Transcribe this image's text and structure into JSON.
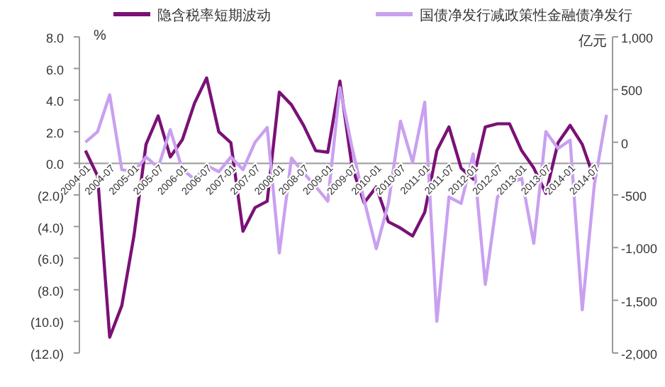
{
  "chart_data": {
    "type": "line",
    "ylabel": "%",
    "y2label": "亿元",
    "legend": "top",
    "line_style": "solid",
    "marker": "none",
    "categories": [
      "2004-01",
      null,
      "2004-07",
      null,
      "2005-01",
      null,
      "2005-07",
      null,
      "2006-01",
      null,
      "2006-07",
      null,
      "2007-01",
      null,
      "2007-07",
      null,
      "2008-01",
      null,
      "2008-07",
      null,
      "2009-01",
      null,
      "2009-07",
      null,
      "2010-01",
      null,
      "2010-07",
      null,
      "2011-01",
      null,
      "2011-07",
      null,
      "2012-01",
      null,
      "2012-07",
      null,
      "2013-01",
      null,
      "2013-07",
      null,
      "2014-01",
      null,
      "2014-07",
      null
    ],
    "ylim": [
      -12,
      8
    ],
    "yticks": [
      {
        "value": 8,
        "label": "8.0"
      },
      {
        "value": 6,
        "label": "6.0"
      },
      {
        "value": 4,
        "label": "4.0"
      },
      {
        "value": 2,
        "label": "2.0"
      },
      {
        "value": 0,
        "label": "0.0"
      },
      {
        "value": -2,
        "label": "(2.0)"
      },
      {
        "value": -4,
        "label": "(4.0)"
      },
      {
        "value": -6,
        "label": "(6.0)"
      },
      {
        "value": -8,
        "label": "(8.0)"
      },
      {
        "value": -10,
        "label": "(10.0)"
      },
      {
        "value": -12,
        "label": "(12.0)"
      }
    ],
    "y2lim": [
      -2000,
      1000
    ],
    "y2ticks": [
      {
        "value": 1000,
        "label": "1,000"
      },
      500,
      0,
      -500,
      {
        "value": -1000,
        "label": "-1,000"
      },
      {
        "value": -1500,
        "label": "-1,500"
      },
      {
        "value": -2000,
        "label": "-2,000"
      }
    ],
    "series": [
      {
        "name": "隐含税率短期波动",
        "color": "#7a1176",
        "values": [
          0.8,
          -0.8,
          -11.0,
          -9.0,
          -4.6,
          1.2,
          3.0,
          0.4,
          1.5,
          3.8,
          5.4,
          2.0,
          1.3,
          -4.3,
          -2.8,
          -2.4,
          4.5,
          3.7,
          2.4,
          0.8,
          0.7,
          5.2,
          -0.2,
          -2.5,
          -1.5,
          -3.7,
          -4.1,
          -4.6,
          -3.1,
          0.8,
          2.3,
          -0.3,
          -1.0,
          2.3,
          2.5,
          2.5,
          0.8,
          -0.3,
          -1.9,
          1.3,
          2.4,
          1.2,
          -1.0,
          null
        ]
      },
      {
        "name": "国债净发行减政策性金融债净发行",
        "color": "#c9a0f0",
        "axis": "y2",
        "values": [
          0,
          100,
          450,
          -260,
          -280,
          -140,
          -240,
          120,
          -260,
          -350,
          -220,
          -280,
          -140,
          -260,
          0,
          140,
          -1050,
          -150,
          -290,
          -420,
          -560,
          520,
          -50,
          -550,
          -1010,
          -580,
          200,
          -190,
          380,
          -1700,
          -520,
          -580,
          -110,
          -1350,
          -520,
          -400,
          -340,
          -960,
          100,
          -60,
          20,
          -1590,
          -400,
          260
        ]
      }
    ]
  }
}
